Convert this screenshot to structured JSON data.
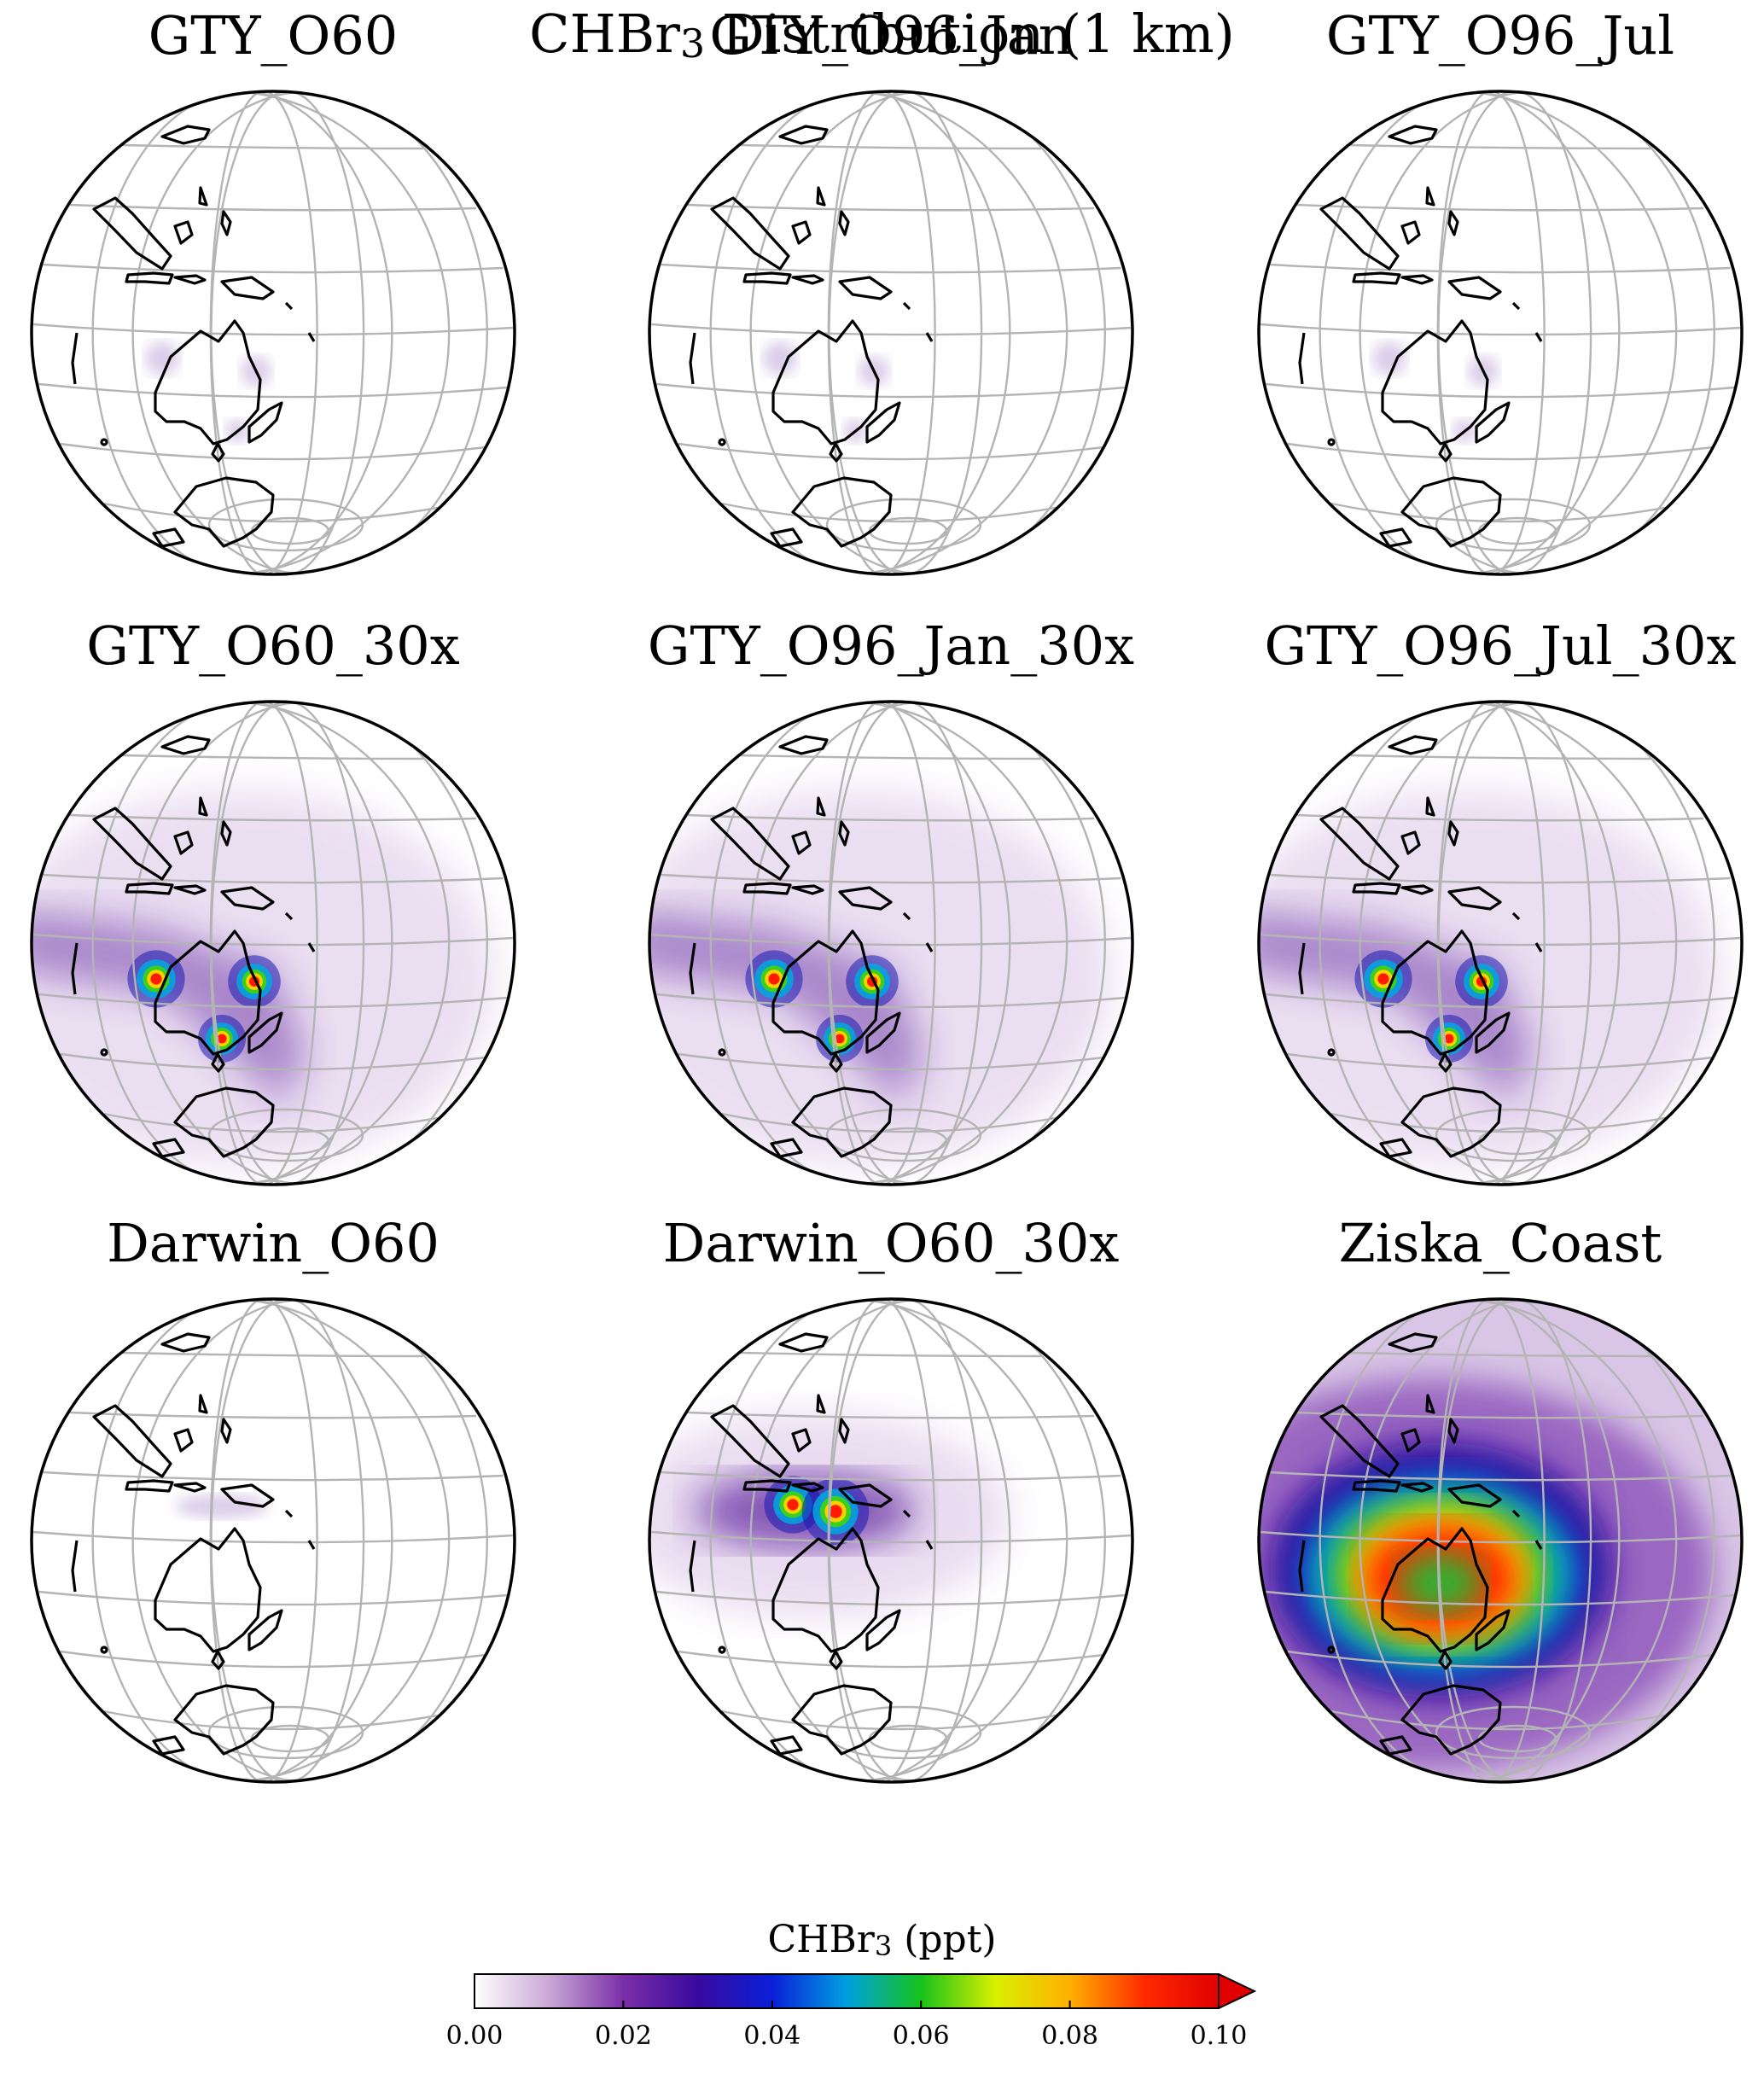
{
  "title": {
    "prefix": "CHBr",
    "sub": "3",
    "suffix": " Distribution (1 km)"
  },
  "panels": [
    {
      "name": "GTY_O60",
      "plume": "weak",
      "sources": [
        "wa",
        "qld",
        "tas"
      ]
    },
    {
      "name": "GTY_O96_Jan",
      "plume": "weak",
      "sources": [
        "wa",
        "qld",
        "tas"
      ]
    },
    {
      "name": "GTY_O96_Jul",
      "plume": "weak",
      "sources": [
        "wa",
        "qld",
        "tas"
      ]
    },
    {
      "name": "GTY_O60_30x",
      "plume": "strong",
      "sources": [
        "wa",
        "qld",
        "tas"
      ]
    },
    {
      "name": "GTY_O96_Jan_30x",
      "plume": "strong",
      "sources": [
        "wa",
        "qld",
        "tas"
      ]
    },
    {
      "name": "GTY_O96_Jul_30x",
      "plume": "strong",
      "sources": [
        "wa",
        "qld",
        "tas"
      ]
    },
    {
      "name": "Darwin_O60",
      "plume": "weak",
      "sources": [
        "darwin"
      ]
    },
    {
      "name": "Darwin_O60_30x",
      "plume": "strong",
      "sources": [
        "darwin"
      ]
    },
    {
      "name": "Ziska_Coast",
      "plume": "coast",
      "sources": [
        "coast"
      ]
    }
  ],
  "colorbar": {
    "label_prefix": "CHBr",
    "label_sub": "3",
    "label_suffix": " (ppt)",
    "ticks": [
      "0.00",
      "0.02",
      "0.04",
      "0.06",
      "0.08",
      "0.10"
    ],
    "min": 0.0,
    "max": 0.1,
    "extend": "max",
    "colors": [
      "#ffffff",
      "#c9a8d6",
      "#7a2fa8",
      "#3a0aa0",
      "#0a1fd8",
      "#00a0e0",
      "#17c21a",
      "#d8f000",
      "#ffb000",
      "#ff2a00",
      "#e00000"
    ]
  },
  "style": {
    "coastline": "#000000",
    "grid": "#b4b4b4",
    "plume": "#5a1a9c"
  }
}
